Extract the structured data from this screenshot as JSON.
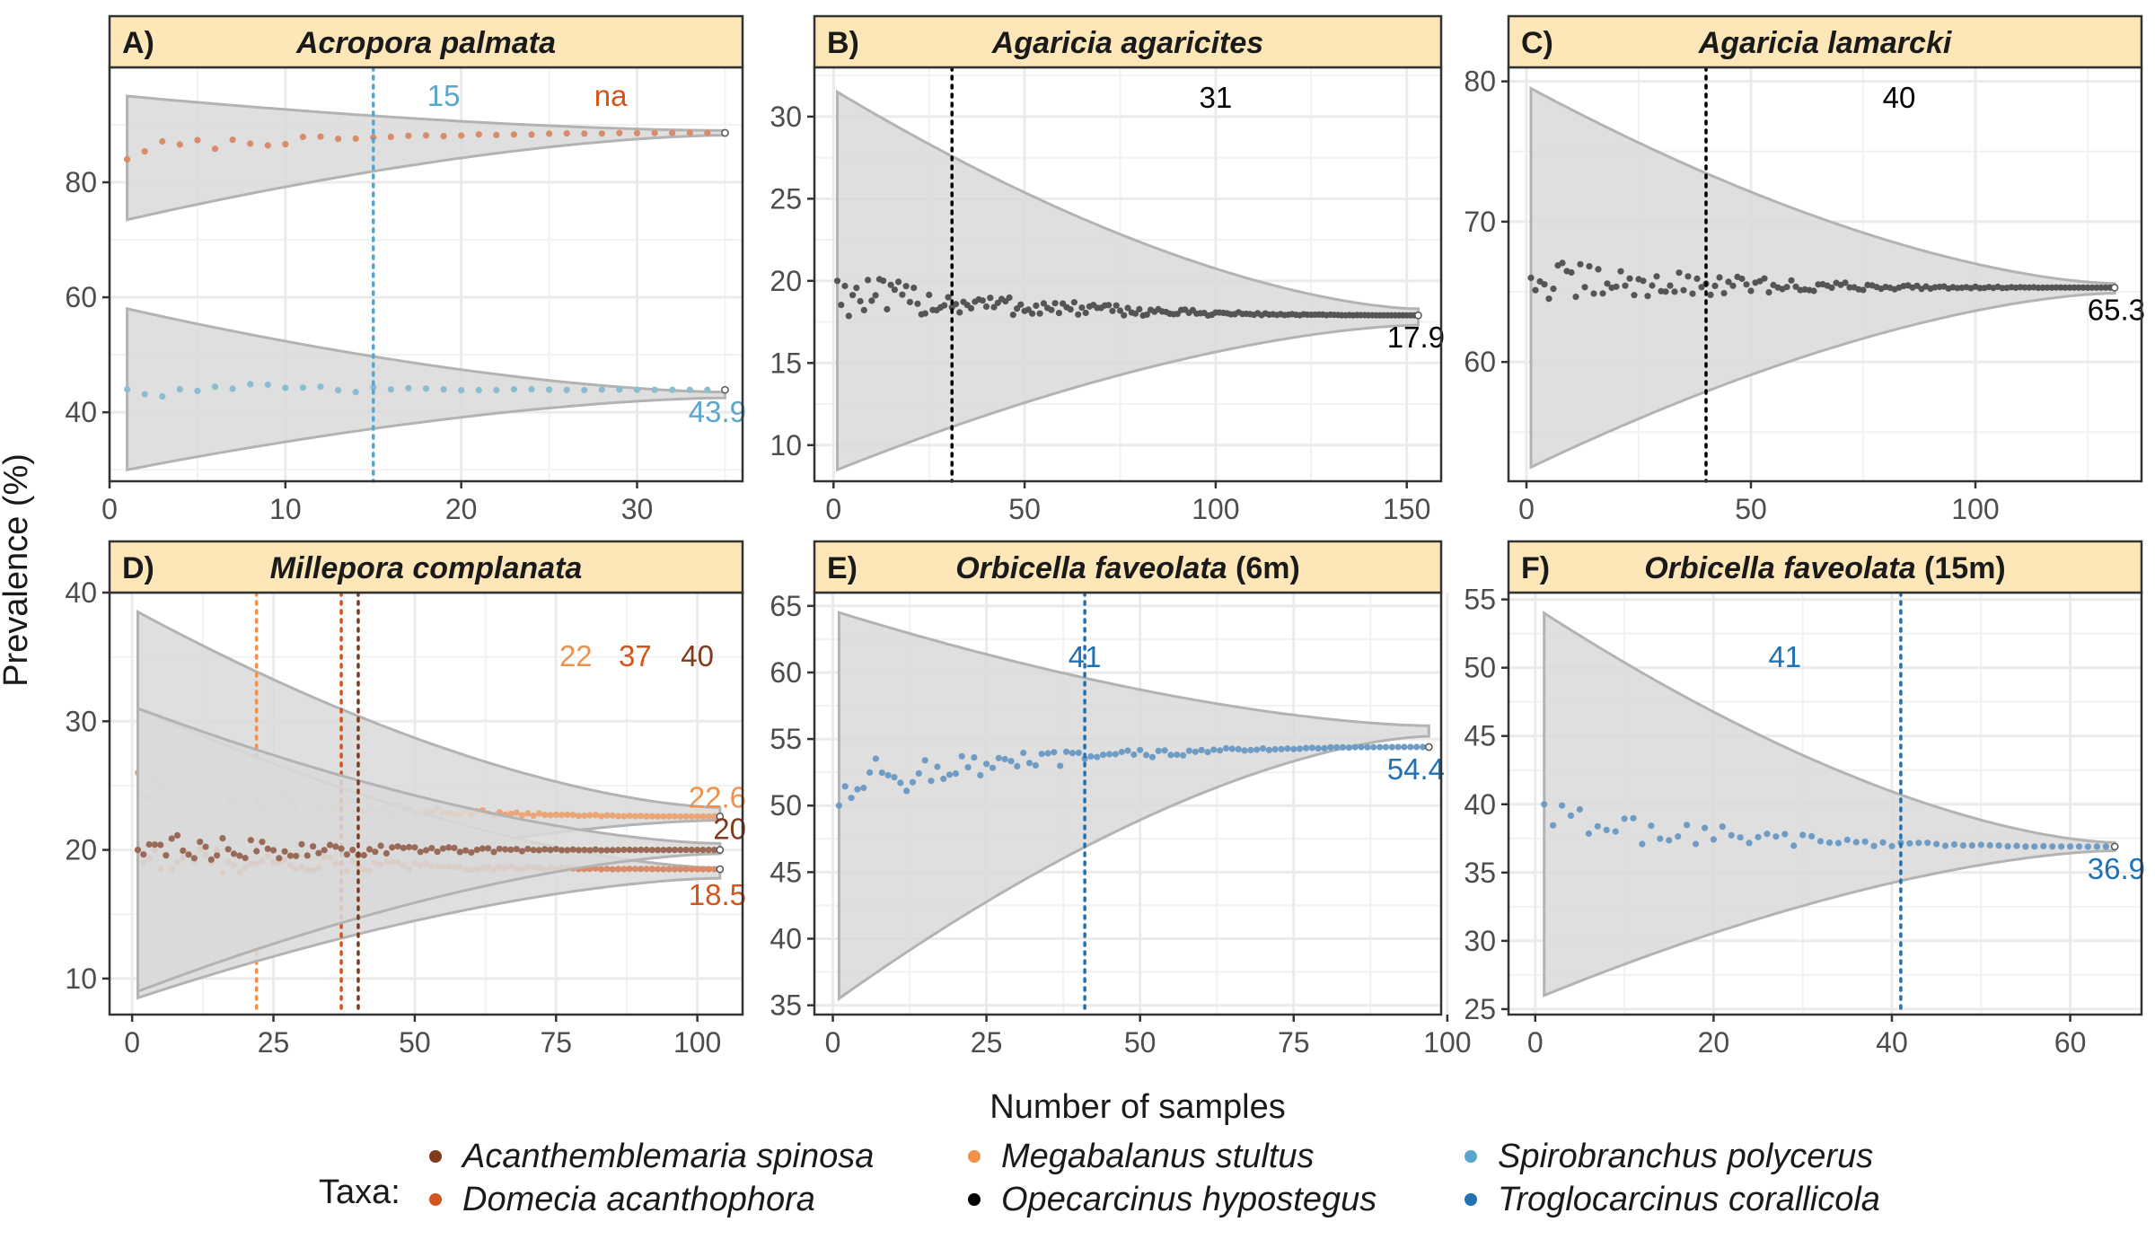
{
  "colors": {
    "Acanthemblemaria spinosa": "#7f3b1e",
    "Domecia acanthophora": "#d4541b",
    "Megabalanus stultus": "#f0924b",
    "Opecarcinus hypostegus": "#000000",
    "Spirobranchus polycerus": "#5aa5cc",
    "Troglocarcinus corallicola": "#2171b5"
  },
  "point_colors": {
    "Acanthemblemaria spinosa": "#9a6a58",
    "Domecia acanthophora": "#d98c6a",
    "Megabalanus stultus": "#eaa676",
    "Opecarcinus hypostegus": "#555555",
    "Spirobranchus polycerus": "#8cbccf",
    "Troglocarcinus corallicola": "#6f9cc5"
  },
  "band_color": "#d9d9d9",
  "band_edge_color": "#b3b3b3",
  "strip_color": "#fde6b8",
  "y_axis_title": "Prevalence (%)",
  "x_axis_title": "Number of samples",
  "legend": {
    "title": "Taxa:",
    "items": [
      {
        "label": "Acanthemblemaria spinosa",
        "color": "#7f3b1e"
      },
      {
        "label": "Domecia acanthophora",
        "color": "#d4541b"
      },
      {
        "label": "Megabalanus stultus",
        "color": "#f0924b"
      },
      {
        "label": "Opecarcinus hypostegus",
        "color": "#000000"
      },
      {
        "label": "Spirobranchus polycerus",
        "color": "#5aa5cc"
      },
      {
        "label": "Troglocarcinus corallicola",
        "color": "#2171b5"
      }
    ]
  },
  "chart_data": [
    {
      "panel": "A)",
      "title": "Acropora palmata",
      "title_suffix": "",
      "type": "line",
      "xlim": [
        0,
        36
      ],
      "ylim": [
        28,
        100
      ],
      "x_ticks": [
        0,
        10,
        20,
        30
      ],
      "y_ticks": [
        40,
        60,
        80
      ],
      "series": [
        {
          "taxon": "Domecia acanthophora",
          "n": 35,
          "start": 84,
          "final": 88.6,
          "band_start": [
            73.5,
            95
          ],
          "band_end": [
            88.2,
            89
          ],
          "cutoff_label": "na",
          "final_label": ""
        },
        {
          "taxon": "Spirobranchus polycerus",
          "n": 35,
          "start": 44,
          "final": 43.9,
          "band_start": [
            30,
            58
          ],
          "band_end": [
            42.5,
            43.5
          ],
          "cutoff": 15,
          "cutoff_label": "15",
          "final_label": "43.9"
        }
      ]
    },
    {
      "panel": "B)",
      "title": "Agaricia agaricites",
      "title_suffix": "",
      "type": "line",
      "xlim": [
        -5,
        159
      ],
      "ylim": [
        7.8,
        33
      ],
      "x_ticks": [
        0,
        50,
        100,
        150
      ],
      "y_ticks": [
        10,
        15,
        20,
        25,
        30
      ],
      "series": [
        {
          "taxon": "Opecarcinus hypostegus",
          "n": 153,
          "start": 20,
          "final": 17.9,
          "band_start": [
            8.5,
            31.5
          ],
          "band_end": [
            17.3,
            18.3
          ],
          "cutoff": 31,
          "cutoff_label": "31",
          "final_label": "17.9"
        }
      ]
    },
    {
      "panel": "C)",
      "title": "Agaricia lamarcki",
      "title_suffix": "",
      "type": "line",
      "xlim": [
        -4,
        137
      ],
      "ylim": [
        51.5,
        81
      ],
      "x_ticks": [
        0,
        50,
        100
      ],
      "y_ticks": [
        60,
        70,
        80
      ],
      "series": [
        {
          "taxon": "Opecarcinus hypostegus",
          "n": 131,
          "start": 66,
          "final": 65.3,
          "band_start": [
            52.5,
            79.5
          ],
          "band_end": [
            64.9,
            65.6
          ],
          "cutoff": 40,
          "cutoff_label": "40",
          "final_label": "65.3"
        }
      ]
    },
    {
      "panel": "D)",
      "title": "Millepora complanata",
      "title_suffix": "",
      "type": "line",
      "xlim": [
        -4,
        108
      ],
      "ylim": [
        7.2,
        40
      ],
      "x_ticks": [
        0,
        25,
        50,
        75,
        100
      ],
      "y_ticks": [
        10,
        20,
        30,
        40
      ],
      "series": [
        {
          "taxon": "Megabalanus stultus",
          "n": 104,
          "start": 26,
          "final": 22.6,
          "band_start": [
            15,
            38.5
          ],
          "band_end": [
            22.3,
            23.3
          ],
          "cutoff": 22,
          "cutoff_label": "22",
          "final_label": "22.6"
        },
        {
          "taxon": "Domecia acanthophora",
          "n": 104,
          "start": 20,
          "final": 18.5,
          "band_start": [
            8.5,
            31
          ],
          "band_end": [
            17.8,
            18.6
          ],
          "cutoff": 37,
          "cutoff_label": "37",
          "final_label": "18.5"
        },
        {
          "taxon": "Acanthemblemaria spinosa",
          "n": 104,
          "start": 20,
          "final": 20,
          "band_start": [
            9,
            31
          ],
          "band_end": [
            19.7,
            20.5
          ],
          "cutoff": 40,
          "cutoff_label": "40",
          "final_label": "20"
        }
      ]
    },
    {
      "panel": "E)",
      "title": "Orbicella faveolata",
      "title_suffix": " (6m)",
      "type": "line",
      "xlim": [
        -3,
        99
      ],
      "ylim": [
        34.3,
        66
      ],
      "x_ticks": [
        0,
        25,
        50,
        75,
        100
      ],
      "y_ticks": [
        35,
        40,
        45,
        50,
        55,
        60,
        65
      ],
      "series": [
        {
          "taxon": "Troglocarcinus corallicola",
          "n": 97,
          "start": 50,
          "final": 54.4,
          "band_start": [
            35.5,
            64.5
          ],
          "band_end": [
            55.2,
            56
          ],
          "cutoff": 41,
          "cutoff_label": "41",
          "final_label": "54.4"
        }
      ]
    },
    {
      "panel": "F)",
      "title": "Orbicella faveolata",
      "title_suffix": " (15m)",
      "type": "line",
      "xlim": [
        -3,
        68
      ],
      "ylim": [
        24.6,
        55.5
      ],
      "x_ticks": [
        0,
        20,
        40,
        60
      ],
      "y_ticks": [
        25,
        30,
        35,
        40,
        45,
        50,
        55
      ],
      "series": [
        {
          "taxon": "Troglocarcinus corallicola",
          "n": 65,
          "start": 40,
          "final": 36.9,
          "band_start": [
            26,
            54
          ],
          "band_end": [
            36.6,
            37.2
          ],
          "cutoff": 41,
          "cutoff_label": "41",
          "final_label": "36.9"
        }
      ]
    }
  ]
}
